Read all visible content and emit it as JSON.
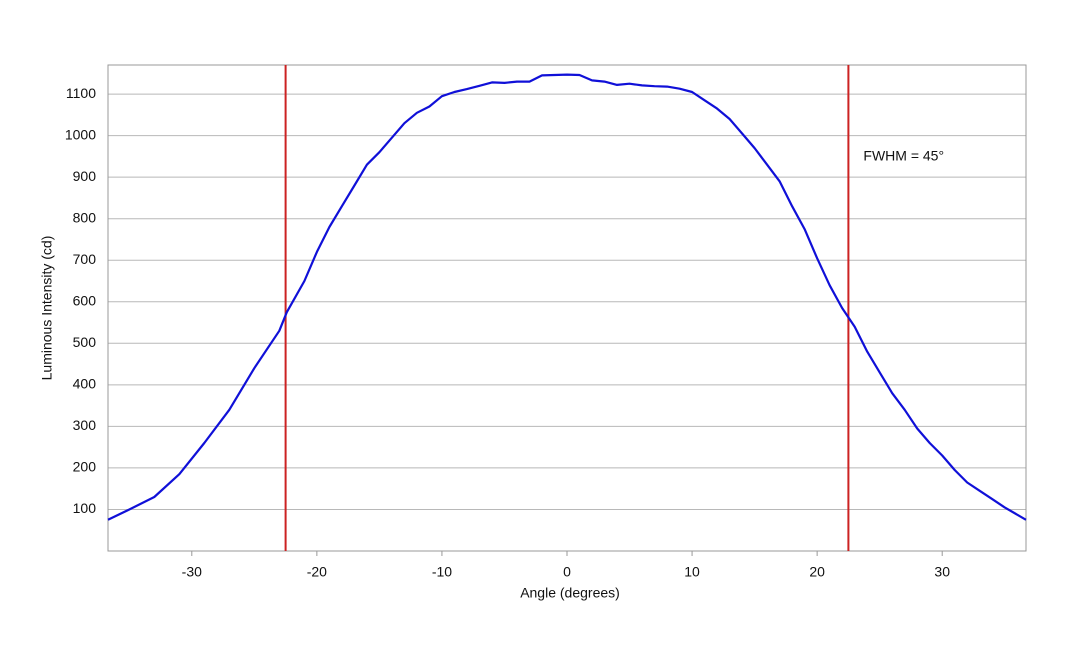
{
  "chart_data": {
    "type": "line",
    "x_label": "Angle (degrees)",
    "y_label": "Luminous Intensity (cd)",
    "annotation": "FWHM = 45°",
    "x": [
      -36.7,
      -35,
      -33,
      -31,
      -29,
      -27,
      -25,
      -23,
      -22.4,
      -21,
      -20,
      -19,
      -18,
      -17,
      -16,
      -15,
      -14,
      -13,
      -12,
      -11,
      -10,
      -9,
      -8,
      -7,
      -6,
      -5,
      -4,
      -3,
      -2,
      -1,
      0,
      1,
      2,
      3,
      4,
      5,
      6,
      7,
      8,
      9,
      10,
      11,
      12,
      13,
      14,
      15,
      16,
      17,
      18,
      19,
      20,
      21,
      22,
      23,
      24,
      25,
      26,
      27,
      28,
      29,
      30,
      31,
      32,
      33,
      34,
      35,
      36.7
    ],
    "values": [
      75,
      100,
      130,
      185,
      260,
      340,
      440,
      530,
      575,
      650,
      720,
      780,
      830,
      880,
      930,
      960,
      995,
      1030,
      1055,
      1070,
      1095,
      1105,
      1112,
      1120,
      1128,
      1127,
      1130,
      1130,
      1145,
      1146,
      1147,
      1146,
      1133,
      1130,
      1122,
      1125,
      1121,
      1119,
      1118,
      1113,
      1105,
      1085,
      1065,
      1040,
      1005,
      970,
      930,
      890,
      830,
      775,
      705,
      640,
      585,
      540,
      480,
      430,
      380,
      340,
      295,
      260,
      230,
      195,
      165,
      145,
      125,
      105,
      75
    ],
    "color": "#1010d8",
    "vlines": [
      -22.5,
      22.5
    ],
    "vline_color": "#cc2222",
    "xlim": [
      -36.7,
      36.7
    ],
    "ylim": [
      0,
      1170
    ],
    "xticks": [
      -30,
      -20,
      -10,
      0,
      10,
      20,
      30
    ],
    "yticks": [
      100,
      200,
      300,
      400,
      500,
      600,
      700,
      800,
      900,
      1000,
      1100
    ],
    "grid": true
  }
}
